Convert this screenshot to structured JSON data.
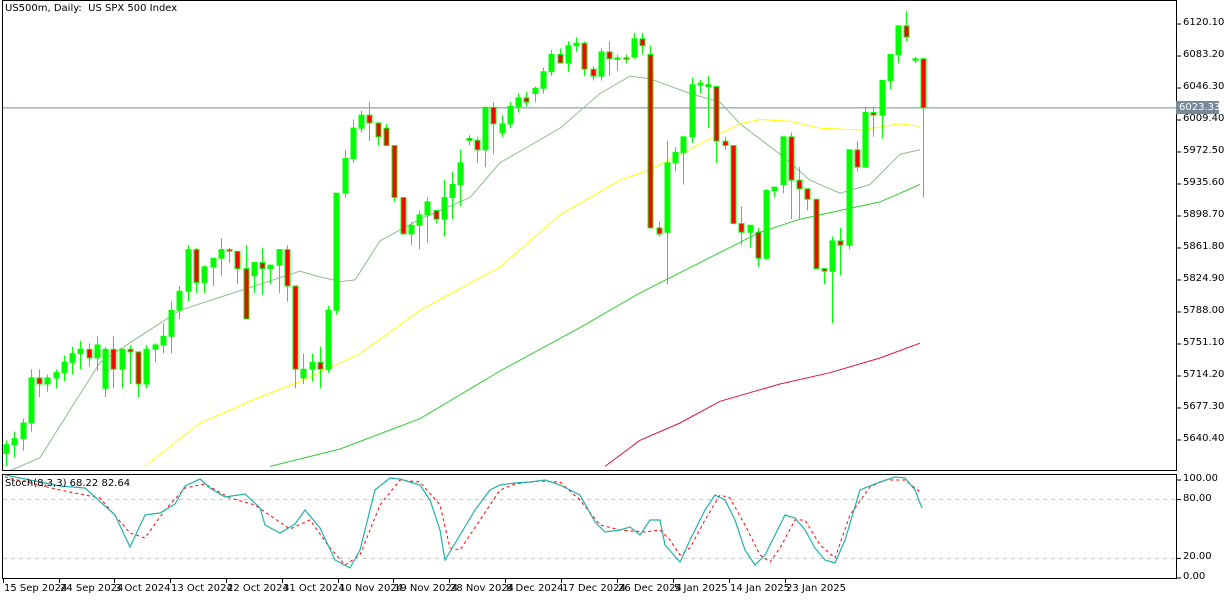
{
  "header": {
    "title": "US500m, Daily:  US SPX 500 Index",
    "current_price": "6023.33"
  },
  "stoch": {
    "label": "Stoch(8,3,3) 68.22 82.64",
    "axis": [
      "100.00",
      "80.00",
      "20.00",
      "0.00"
    ]
  },
  "price_axis": [
    "6120.10",
    "6083.20",
    "6046.30",
    "6009.40",
    "5972.50",
    "5935.60",
    "5898.70",
    "5861.80",
    "5824.90",
    "5788.00",
    "5751.10",
    "5714.20",
    "5677.30",
    "5640.40"
  ],
  "date_axis": [
    "15 Sep 2024",
    "24 Sep 2024",
    "3 Oct 2024",
    "13 Oct 2024",
    "22 Oct 2024",
    "31 Oct 2024",
    "10 Nov 2024",
    "19 Nov 2024",
    "28 Nov 2024",
    "8 Dec 2024",
    "17 Dec 2024",
    "26 Dec 2024",
    "5 Jan 2025",
    "14 Jan 2025",
    "23 Jan 2025"
  ],
  "colors": {
    "bull": "#00ff00",
    "bear": "#ff0000",
    "ma_fast": "#8fbc8f",
    "ma_mid": "#ffff00",
    "ma_slow": "#32cd32",
    "ma_long": "#dc143c",
    "stoch_main": "#20b2aa",
    "stoch_signal": "#ff0000",
    "bid_line": "#778899"
  },
  "chart_data": {
    "type": "candlestick",
    "title": "US500m, Daily:  US SPX 500 Index",
    "ylim": [
      5610,
      6145
    ],
    "yticks": [
      6120.1,
      6083.2,
      6046.3,
      6009.4,
      5972.5,
      5935.6,
      5898.7,
      5861.8,
      5824.9,
      5788.0,
      5751.1,
      5714.2,
      5677.3,
      5640.4
    ],
    "current_price": 6023.33,
    "grid": false,
    "candles": [
      [
        5625,
        5640,
        5610,
        5635
      ],
      [
        5635,
        5650,
        5620,
        5642
      ],
      [
        5642,
        5665,
        5628,
        5660
      ],
      [
        5660,
        5722,
        5650,
        5712
      ],
      [
        5712,
        5722,
        5690,
        5705
      ],
      [
        5705,
        5716,
        5696,
        5712
      ],
      [
        5712,
        5722,
        5700,
        5718
      ],
      [
        5718,
        5738,
        5708,
        5730
      ],
      [
        5730,
        5748,
        5716,
        5740
      ],
      [
        5740,
        5755,
        5722,
        5745
      ],
      [
        5745,
        5752,
        5725,
        5735
      ],
      [
        5735,
        5760,
        5720,
        5750
      ],
      [
        5700,
        5748,
        5690,
        5745
      ],
      [
        5745,
        5760,
        5700,
        5722
      ],
      [
        5722,
        5735,
        5700,
        5745
      ],
      [
        5745,
        5750,
        5705,
        5742
      ],
      [
        5742,
        5700,
        5690,
        5705
      ],
      [
        5705,
        5750,
        5700,
        5745
      ],
      [
        5745,
        5752,
        5730,
        5750
      ],
      [
        5750,
        5775,
        5740,
        5760
      ],
      [
        5760,
        5800,
        5740,
        5790
      ],
      [
        5790,
        5818,
        5780,
        5812
      ],
      [
        5812,
        5865,
        5800,
        5860
      ],
      [
        5860,
        5862,
        5810,
        5822
      ],
      [
        5822,
        5842,
        5810,
        5840
      ],
      [
        5840,
        5850,
        5818,
        5850
      ],
      [
        5850,
        5873,
        5830,
        5860
      ],
      [
        5860,
        5862,
        5845,
        5858
      ],
      [
        5858,
        5855,
        5820,
        5838
      ],
      [
        5838,
        5865,
        5795,
        5780
      ],
      [
        5830,
        5842,
        5810,
        5845
      ],
      [
        5845,
        5862,
        5808,
        5838
      ],
      [
        5838,
        5832,
        5820,
        5842
      ],
      [
        5842,
        5858,
        5810,
        5860
      ],
      [
        5860,
        5865,
        5800,
        5818
      ],
      [
        5818,
        5815,
        5700,
        5722
      ],
      [
        5712,
        5740,
        5705,
        5722
      ],
      [
        5722,
        5740,
        5708,
        5730
      ],
      [
        5730,
        5748,
        5700,
        5722
      ],
      [
        5722,
        5795,
        5718,
        5790
      ],
      [
        5790,
        5920,
        5785,
        5925
      ],
      [
        5925,
        5975,
        5920,
        5965
      ],
      [
        5965,
        6010,
        5960,
        6000
      ],
      [
        6000,
        6020,
        5995,
        6015
      ],
      [
        6015,
        6030,
        5985,
        6006
      ],
      [
        6006,
        6000,
        5980,
        5990
      ],
      [
        6000,
        6005,
        5990,
        5980
      ],
      [
        5980,
        5975,
        5915,
        5920
      ],
      [
        5920,
        5890,
        5880,
        5878
      ],
      [
        5878,
        5892,
        5865,
        5888
      ],
      [
        5888,
        5905,
        5860,
        5900
      ],
      [
        5900,
        5920,
        5868,
        5915
      ],
      [
        5905,
        5902,
        5890,
        5895
      ],
      [
        5895,
        5940,
        5875,
        5920
      ],
      [
        5920,
        5950,
        5895,
        5935
      ],
      [
        5935,
        5975,
        5910,
        5960
      ],
      [
        5988,
        5992,
        5980,
        5986
      ],
      [
        5986,
        5990,
        5960,
        5975
      ],
      [
        5975,
        6025,
        5955,
        6024
      ],
      [
        6024,
        6030,
        5970,
        6005
      ],
      [
        5995,
        6015,
        5990,
        6005
      ],
      [
        6005,
        6030,
        6000,
        6025
      ],
      [
        6025,
        6040,
        6018,
        6035
      ],
      [
        6035,
        6042,
        6025,
        6030
      ],
      [
        6040,
        6048,
        6030,
        6046
      ],
      [
        6046,
        6070,
        6040,
        6065
      ],
      [
        6065,
        6090,
        6060,
        6085
      ],
      [
        6085,
        6092,
        6075,
        6075
      ],
      [
        6075,
        6100,
        6065,
        6095
      ],
      [
        6095,
        6105,
        6088,
        6098
      ],
      [
        6098,
        6100,
        6060,
        6068
      ],
      [
        6068,
        6072,
        6055,
        6060
      ],
      [
        6060,
        6092,
        6055,
        6088
      ],
      [
        6088,
        6100,
        6060,
        6080
      ],
      [
        6080,
        6085,
        6066,
        6081
      ],
      [
        6081,
        6085,
        6075,
        6080
      ],
      [
        6082,
        6110,
        6080,
        6103
      ],
      [
        6103,
        6110,
        6085,
        6095
      ],
      [
        6085,
        6095,
        5885,
        5885
      ],
      [
        5885,
        5892,
        5875,
        5878
      ],
      [
        5880,
        5985,
        5820,
        5960
      ],
      [
        5960,
        5978,
        5950,
        5972
      ],
      [
        5972,
        5990,
        5935,
        5990
      ],
      [
        5990,
        6058,
        5983,
        6050
      ],
      [
        6050,
        6056,
        6040,
        6052
      ],
      [
        6050,
        6060,
        6000,
        6048
      ],
      [
        6048,
        6045,
        5960,
        5985
      ],
      [
        5985,
        5990,
        5975,
        5980
      ],
      [
        5980,
        5975,
        5890,
        5890
      ],
      [
        5890,
        5910,
        5865,
        5880
      ],
      [
        5880,
        5885,
        5862,
        5888
      ],
      [
        5880,
        5885,
        5840,
        5850
      ],
      [
        5850,
        5930,
        5848,
        5928
      ],
      [
        5928,
        5930,
        5920,
        5932
      ],
      [
        5935,
        5985,
        5925,
        5990
      ],
      [
        5990,
        5995,
        5895,
        5940
      ],
      [
        5940,
        5955,
        5895,
        5930
      ],
      [
        5930,
        5920,
        5905,
        5918
      ],
      [
        5918,
        5905,
        5838,
        5838
      ],
      [
        5838,
        5835,
        5820,
        5835
      ],
      [
        5835,
        5875,
        5775,
        5870
      ],
      [
        5870,
        5885,
        5830,
        5865
      ],
      [
        5865,
        5970,
        5860,
        5975
      ],
      [
        5975,
        5985,
        5950,
        5955
      ],
      [
        5955,
        6025,
        5960,
        6018
      ],
      [
        6018,
        6025,
        5990,
        6015
      ],
      [
        6015,
        6055,
        5988,
        6055
      ],
      [
        6055,
        6085,
        6045,
        6085
      ],
      [
        6085,
        6112,
        6075,
        6118
      ],
      [
        6118,
        6135,
        6100,
        6105
      ],
      [
        6080,
        6082,
        6075,
        6080
      ],
      [
        6080,
        6080,
        5920,
        6023.33
      ]
    ],
    "ma_fast_name": "MA (thin grey-green)",
    "ma_mid_name": "MA (yellow)",
    "ma_slow_name": "MA (green)",
    "ma_long_name": "MA (red)",
    "ma_fast": [
      [
        0,
        5600
      ],
      [
        40,
        5620
      ],
      [
        100,
        5730
      ],
      [
        180,
        5790
      ],
      [
        260,
        5820
      ],
      [
        300,
        5835
      ],
      [
        315,
        5830
      ],
      [
        340,
        5823
      ],
      [
        355,
        5825
      ],
      [
        380,
        5870
      ],
      [
        420,
        5895
      ],
      [
        470,
        5920
      ],
      [
        500,
        5960
      ],
      [
        530,
        5980
      ],
      [
        560,
        6000
      ],
      [
        600,
        6040
      ],
      [
        630,
        6060
      ],
      [
        650,
        6057
      ],
      [
        690,
        6040
      ],
      [
        720,
        6030
      ],
      [
        740,
        6005
      ],
      [
        780,
        5970
      ],
      [
        810,
        5940
      ],
      [
        840,
        5925
      ],
      [
        870,
        5935
      ],
      [
        900,
        5970
      ],
      [
        920,
        5975
      ]
    ],
    "ma_mid": [
      [
        145,
        5610
      ],
      [
        200,
        5660
      ],
      [
        260,
        5690
      ],
      [
        300,
        5708
      ],
      [
        360,
        5740
      ],
      [
        420,
        5790
      ],
      [
        500,
        5840
      ],
      [
        560,
        5900
      ],
      [
        620,
        5940
      ],
      [
        650,
        5952
      ],
      [
        700,
        5982
      ],
      [
        740,
        6005
      ],
      [
        760,
        6010
      ],
      [
        790,
        6008
      ],
      [
        820,
        6000
      ],
      [
        860,
        5998
      ],
      [
        900,
        6005
      ],
      [
        920,
        6002
      ]
    ],
    "ma_slow": [
      [
        270,
        5610
      ],
      [
        340,
        5630
      ],
      [
        420,
        5665
      ],
      [
        500,
        5720
      ],
      [
        580,
        5770
      ],
      [
        640,
        5810
      ],
      [
        700,
        5845
      ],
      [
        760,
        5880
      ],
      [
        800,
        5895
      ],
      [
        840,
        5905
      ],
      [
        880,
        5915
      ],
      [
        920,
        5935
      ]
    ],
    "ma_long": [
      [
        605,
        5610
      ],
      [
        640,
        5640
      ],
      [
        680,
        5660
      ],
      [
        720,
        5685
      ],
      [
        780,
        5705
      ],
      [
        830,
        5718
      ],
      [
        880,
        5735
      ],
      [
        920,
        5752
      ]
    ],
    "stoch_main": [
      [
        5,
        475
      ],
      [
        60,
        486
      ],
      [
        85,
        488
      ],
      [
        115,
        515
      ],
      [
        130,
        547
      ],
      [
        145,
        515
      ],
      [
        160,
        513
      ],
      [
        175,
        504
      ],
      [
        185,
        486
      ],
      [
        200,
        479
      ],
      [
        210,
        488
      ],
      [
        225,
        497
      ],
      [
        245,
        494
      ],
      [
        260,
        508
      ],
      [
        265,
        525
      ],
      [
        280,
        533
      ],
      [
        295,
        524
      ],
      [
        305,
        510
      ],
      [
        320,
        528
      ],
      [
        335,
        560
      ],
      [
        350,
        568
      ],
      [
        360,
        550
      ],
      [
        375,
        490
      ],
      [
        390,
        478
      ],
      [
        400,
        479
      ],
      [
        420,
        485
      ],
      [
        430,
        500
      ],
      [
        440,
        530
      ],
      [
        445,
        560
      ],
      [
        460,
        535
      ],
      [
        475,
        510
      ],
      [
        490,
        490
      ],
      [
        500,
        485
      ],
      [
        515,
        483
      ],
      [
        530,
        482
      ],
      [
        545,
        480
      ],
      [
        560,
        485
      ],
      [
        570,
        490
      ],
      [
        580,
        495
      ],
      [
        595,
        522
      ],
      [
        605,
        532
      ],
      [
        620,
        530
      ],
      [
        630,
        527
      ],
      [
        640,
        535
      ],
      [
        650,
        520
      ],
      [
        660,
        520
      ],
      [
        665,
        545
      ],
      [
        680,
        562
      ],
      [
        690,
        540
      ],
      [
        705,
        510
      ],
      [
        715,
        495
      ],
      [
        725,
        500
      ],
      [
        735,
        520
      ],
      [
        745,
        550
      ],
      [
        755,
        565
      ],
      [
        765,
        555
      ],
      [
        775,
        535
      ],
      [
        785,
        515
      ],
      [
        795,
        518
      ],
      [
        805,
        530
      ],
      [
        815,
        548
      ],
      [
        825,
        560
      ],
      [
        835,
        563
      ],
      [
        845,
        540
      ],
      [
        860,
        490
      ],
      [
        880,
        482
      ],
      [
        895,
        477
      ],
      [
        905,
        478
      ],
      [
        915,
        490
      ],
      [
        922,
        508
      ]
    ],
    "stoch_signal": [
      [
        5,
        477
      ],
      [
        60,
        490
      ],
      [
        100,
        498
      ],
      [
        130,
        533
      ],
      [
        145,
        538
      ],
      [
        165,
        510
      ],
      [
        185,
        488
      ],
      [
        205,
        484
      ],
      [
        230,
        498
      ],
      [
        255,
        505
      ],
      [
        265,
        512
      ],
      [
        290,
        529
      ],
      [
        310,
        520
      ],
      [
        330,
        548
      ],
      [
        345,
        565
      ],
      [
        360,
        555
      ],
      [
        380,
        505
      ],
      [
        400,
        480
      ],
      [
        420,
        482
      ],
      [
        440,
        505
      ],
      [
        450,
        548
      ],
      [
        460,
        550
      ],
      [
        480,
        520
      ],
      [
        500,
        490
      ],
      [
        515,
        484
      ],
      [
        540,
        481
      ],
      [
        560,
        482
      ],
      [
        580,
        500
      ],
      [
        600,
        525
      ],
      [
        620,
        530
      ],
      [
        645,
        532
      ],
      [
        660,
        530
      ],
      [
        670,
        540
      ],
      [
        680,
        555
      ],
      [
        690,
        548
      ],
      [
        705,
        520
      ],
      [
        720,
        495
      ],
      [
        730,
        498
      ],
      [
        745,
        525
      ],
      [
        760,
        555
      ],
      [
        770,
        562
      ],
      [
        780,
        548
      ],
      [
        795,
        520
      ],
      [
        805,
        520
      ],
      [
        820,
        545
      ],
      [
        835,
        558
      ],
      [
        850,
        515
      ],
      [
        870,
        487
      ],
      [
        885,
        480
      ],
      [
        905,
        480
      ],
      [
        920,
        492
      ]
    ]
  }
}
